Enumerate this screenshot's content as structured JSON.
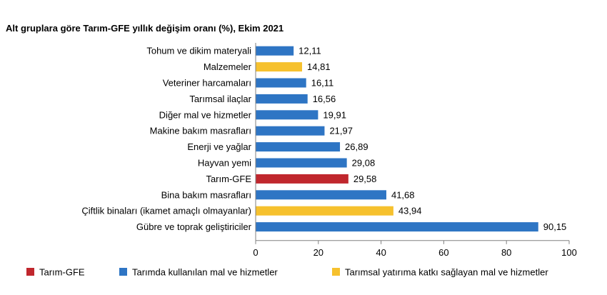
{
  "chart_data": {
    "type": "bar",
    "orientation": "horizontal",
    "title": "Alt gruplara göre Tarım-GFE yıllık değişim oranı (%), Ekim 2021",
    "categories": [
      "Tohum ve dikim materyali",
      "Malzemeler",
      "Veteriner harcamaları",
      "Tarımsal ilaçlar",
      "Diğer mal ve hizmetler",
      "Makine bakım masrafları",
      "Enerji ve yağlar",
      "Hayvan yemi",
      "Tarım-GFE",
      "Bina bakım masrafları",
      "Çiftlik binaları (ikamet amaçlı olmayanlar)",
      "Gübre ve toprak geliştiriciler"
    ],
    "values": [
      12.11,
      14.81,
      16.11,
      16.56,
      19.91,
      21.97,
      26.89,
      29.08,
      29.58,
      41.68,
      43.94,
      90.15
    ],
    "value_labels": [
      "12,11",
      "14,81",
      "16,11",
      "16,56",
      "19,91",
      "21,97",
      "26,89",
      "29,08",
      "29,58",
      "41,68",
      "43,94",
      "90,15"
    ],
    "groups": [
      1,
      2,
      1,
      1,
      1,
      1,
      1,
      1,
      0,
      1,
      2,
      1
    ],
    "legend": [
      {
        "name": "Tarım-GFE",
        "color": "#c0272d"
      },
      {
        "name": "Tarımda kullanılan mal ve hizmetler",
        "color": "#2e75c4"
      },
      {
        "name": "Tarımsal yatırıma katkı sağlayan mal ve hizmetler",
        "color": "#f6c12e"
      }
    ],
    "legend_position": "bottom",
    "xlim": [
      0,
      100
    ],
    "xticks": [
      0,
      20,
      40,
      60,
      80,
      100
    ],
    "grid": false
  }
}
